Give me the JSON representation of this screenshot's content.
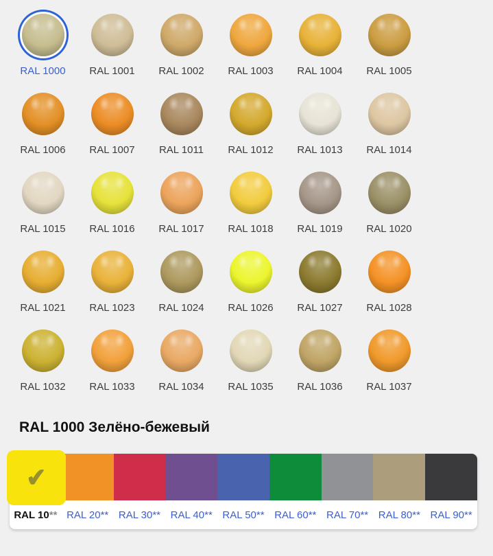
{
  "section": {
    "title": "RAL 1000 Зелёно-бежевый"
  },
  "icons": {
    "check": "✔"
  },
  "colors": {
    "link_blue": "#3a5fd0",
    "selection_ring_blue": "#2e62d9",
    "label_dark": "#3c3c3c",
    "page_background": "#f0f0f0",
    "card_background": "#ffffff",
    "check_olive": "#97902c"
  },
  "swatches": [
    {
      "code": "RAL 1000",
      "color": "#c6bd8f",
      "selected": true
    },
    {
      "code": "RAL 1001",
      "color": "#cfbd97",
      "selected": false
    },
    {
      "code": "RAL 1002",
      "color": "#cfa96a",
      "selected": false
    },
    {
      "code": "RAL 1003",
      "color": "#efa73e",
      "selected": false
    },
    {
      "code": "RAL 1004",
      "color": "#e7b238",
      "selected": false
    },
    {
      "code": "RAL 1005",
      "color": "#cc9d42",
      "selected": false
    },
    {
      "code": "RAL 1006",
      "color": "#e39026",
      "selected": false
    },
    {
      "code": "RAL 1007",
      "color": "#ec8d26",
      "selected": false
    },
    {
      "code": "RAL 1011",
      "color": "#a9885e",
      "selected": false
    },
    {
      "code": "RAL 1012",
      "color": "#d4a92e",
      "selected": false
    },
    {
      "code": "RAL 1013",
      "color": "#e7e3d6",
      "selected": false
    },
    {
      "code": "RAL 1014",
      "color": "#ddc6a2",
      "selected": false
    },
    {
      "code": "RAL 1015",
      "color": "#e2d7c2",
      "selected": false
    },
    {
      "code": "RAL 1016",
      "color": "#e6e23b",
      "selected": false
    },
    {
      "code": "RAL 1017",
      "color": "#eca45c",
      "selected": false
    },
    {
      "code": "RAL 1018",
      "color": "#f2cc3e",
      "selected": false
    },
    {
      "code": "RAL 1019",
      "color": "#a69789",
      "selected": false
    },
    {
      "code": "RAL 1020",
      "color": "#9b9168",
      "selected": false
    },
    {
      "code": "RAL 1021",
      "color": "#e7ae33",
      "selected": false
    },
    {
      "code": "RAL 1023",
      "color": "#e9b23a",
      "selected": false
    },
    {
      "code": "RAL 1024",
      "color": "#ae9a5f",
      "selected": false
    },
    {
      "code": "RAL 1026",
      "color": "#ecf52e",
      "selected": false
    },
    {
      "code": "RAL 1027",
      "color": "#8c7b30",
      "selected": false
    },
    {
      "code": "RAL 1028",
      "color": "#f49226",
      "selected": false
    },
    {
      "code": "RAL 1032",
      "color": "#ccb233",
      "selected": false
    },
    {
      "code": "RAL 1033",
      "color": "#f2a13b",
      "selected": false
    },
    {
      "code": "RAL 1034",
      "color": "#e9a964",
      "selected": false
    },
    {
      "code": "RAL 1035",
      "color": "#e2d8b7",
      "selected": false
    },
    {
      "code": "RAL 1036",
      "color": "#c0a566",
      "selected": false
    },
    {
      "code": "RAL 1037",
      "color": "#f0992b",
      "selected": false
    }
  ],
  "tabs": [
    {
      "prefix": "RAL 10",
      "suffix": "**",
      "color": "#f8e40c",
      "selected": true
    },
    {
      "prefix": "RAL 20",
      "suffix": "**",
      "color": "#f09226",
      "selected": false
    },
    {
      "prefix": "RAL 30",
      "suffix": "**",
      "color": "#d02d4a",
      "selected": false
    },
    {
      "prefix": "RAL 40",
      "suffix": "**",
      "color": "#6f4f8f",
      "selected": false
    },
    {
      "prefix": "RAL 50",
      "suffix": "**",
      "color": "#4a63af",
      "selected": false
    },
    {
      "prefix": "RAL 60",
      "suffix": "**",
      "color": "#0e8c39",
      "selected": false
    },
    {
      "prefix": "RAL 70",
      "suffix": "**",
      "color": "#909296",
      "selected": false
    },
    {
      "prefix": "RAL 80",
      "suffix": "**",
      "color": "#ac9e7c",
      "selected": false
    },
    {
      "prefix": "RAL 90",
      "suffix": "**",
      "color": "#3a3a3c",
      "selected": false
    }
  ]
}
